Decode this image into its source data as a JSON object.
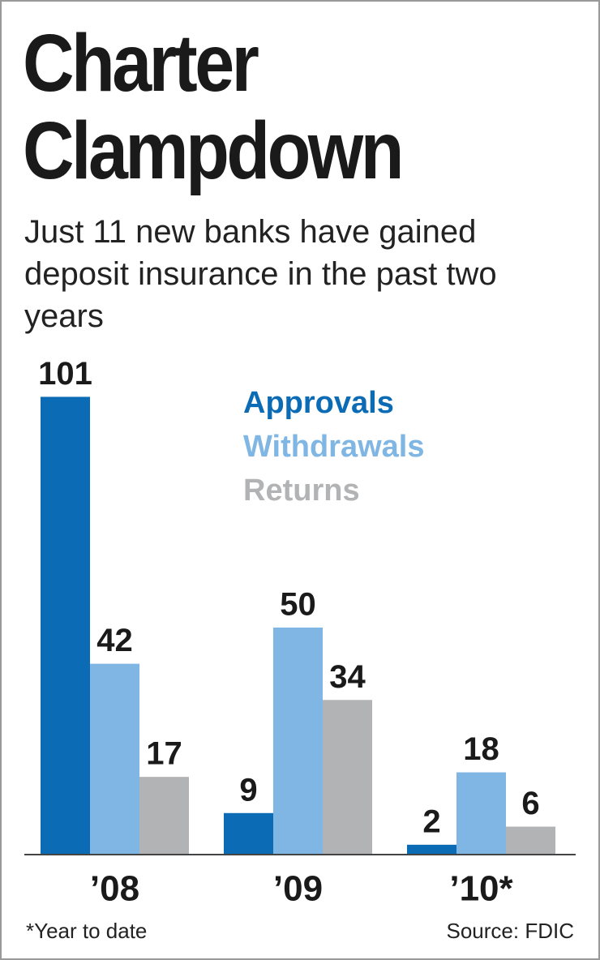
{
  "chart_data": {
    "type": "bar",
    "title": "Charter Clampdown",
    "subtitle": "Just 11 new banks have gained deposit insurance in the past two years",
    "categories": [
      "’08",
      "’09",
      "’10*"
    ],
    "series": [
      {
        "name": "Approvals",
        "color": "#0b6cb5",
        "values": [
          101,
          9,
          2
        ]
      },
      {
        "name": "Withdrawals",
        "color": "#7fb6e3",
        "values": [
          42,
          50,
          18
        ]
      },
      {
        "name": "Returns",
        "color": "#b2b3b5",
        "values": [
          17,
          34,
          6
        ]
      }
    ],
    "footnote": "*Year to date",
    "source": "Source: FDIC"
  }
}
